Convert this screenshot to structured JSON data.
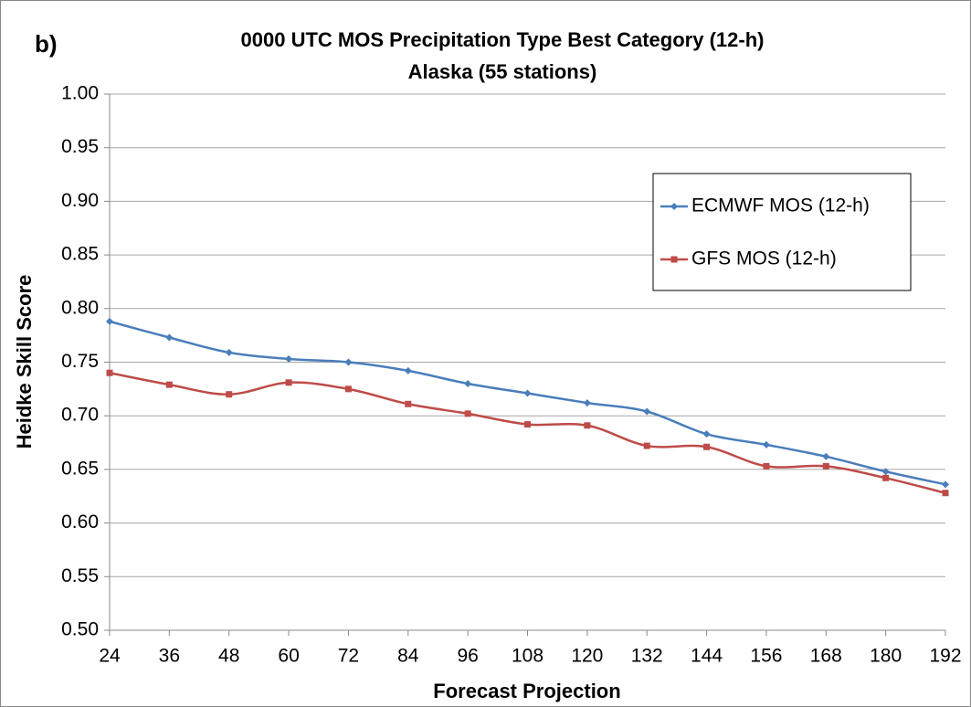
{
  "chart_data": {
    "type": "line",
    "panel_label": "b)",
    "title": "0000 UTC MOS Precipitation Type Best Category (12-h)",
    "subtitle": "Alaska (55 stations)",
    "x_label": "Forecast Projection",
    "y_label": "Heidke Skill Score",
    "x": [
      24,
      36,
      48,
      60,
      72,
      84,
      96,
      108,
      120,
      132,
      144,
      156,
      168,
      180,
      192
    ],
    "xlim": [
      24,
      192
    ],
    "xticks": [
      24,
      36,
      48,
      60,
      72,
      84,
      96,
      108,
      120,
      132,
      144,
      156,
      168,
      180,
      192
    ],
    "ylim": [
      0.5,
      1.0
    ],
    "yticks": [
      {
        "value": 0.5,
        "label": "0.50"
      },
      {
        "value": 0.55,
        "label": "0.55"
      },
      {
        "value": 0.6,
        "label": "0.60"
      },
      {
        "value": 0.65,
        "label": "0.65"
      },
      {
        "value": 0.7,
        "label": "0.70"
      },
      {
        "value": 0.75,
        "label": "0.75"
      },
      {
        "value": 0.8,
        "label": "0.80"
      },
      {
        "value": 0.85,
        "label": "0.85"
      },
      {
        "value": 0.9,
        "label": "0.90"
      },
      {
        "value": 0.95,
        "label": "0.95"
      },
      {
        "value": 1.0,
        "label": "1.00"
      }
    ],
    "grid": true,
    "legend": "upper right",
    "series": [
      {
        "name": "ECMWF MOS (12-h)",
        "color": "#4a7ebb",
        "marker": "diamond",
        "values": [
          0.788,
          0.773,
          0.759,
          0.753,
          0.75,
          0.742,
          0.73,
          0.721,
          0.712,
          0.704,
          0.683,
          0.673,
          0.662,
          0.648,
          0.636
        ]
      },
      {
        "name": "GFS MOS (12-h)",
        "color": "#be4b48",
        "marker": "square",
        "values": [
          0.74,
          0.729,
          0.72,
          0.731,
          0.725,
          0.711,
          0.702,
          0.692,
          0.691,
          0.672,
          0.671,
          0.653,
          0.653,
          0.642,
          0.628
        ]
      }
    ]
  }
}
